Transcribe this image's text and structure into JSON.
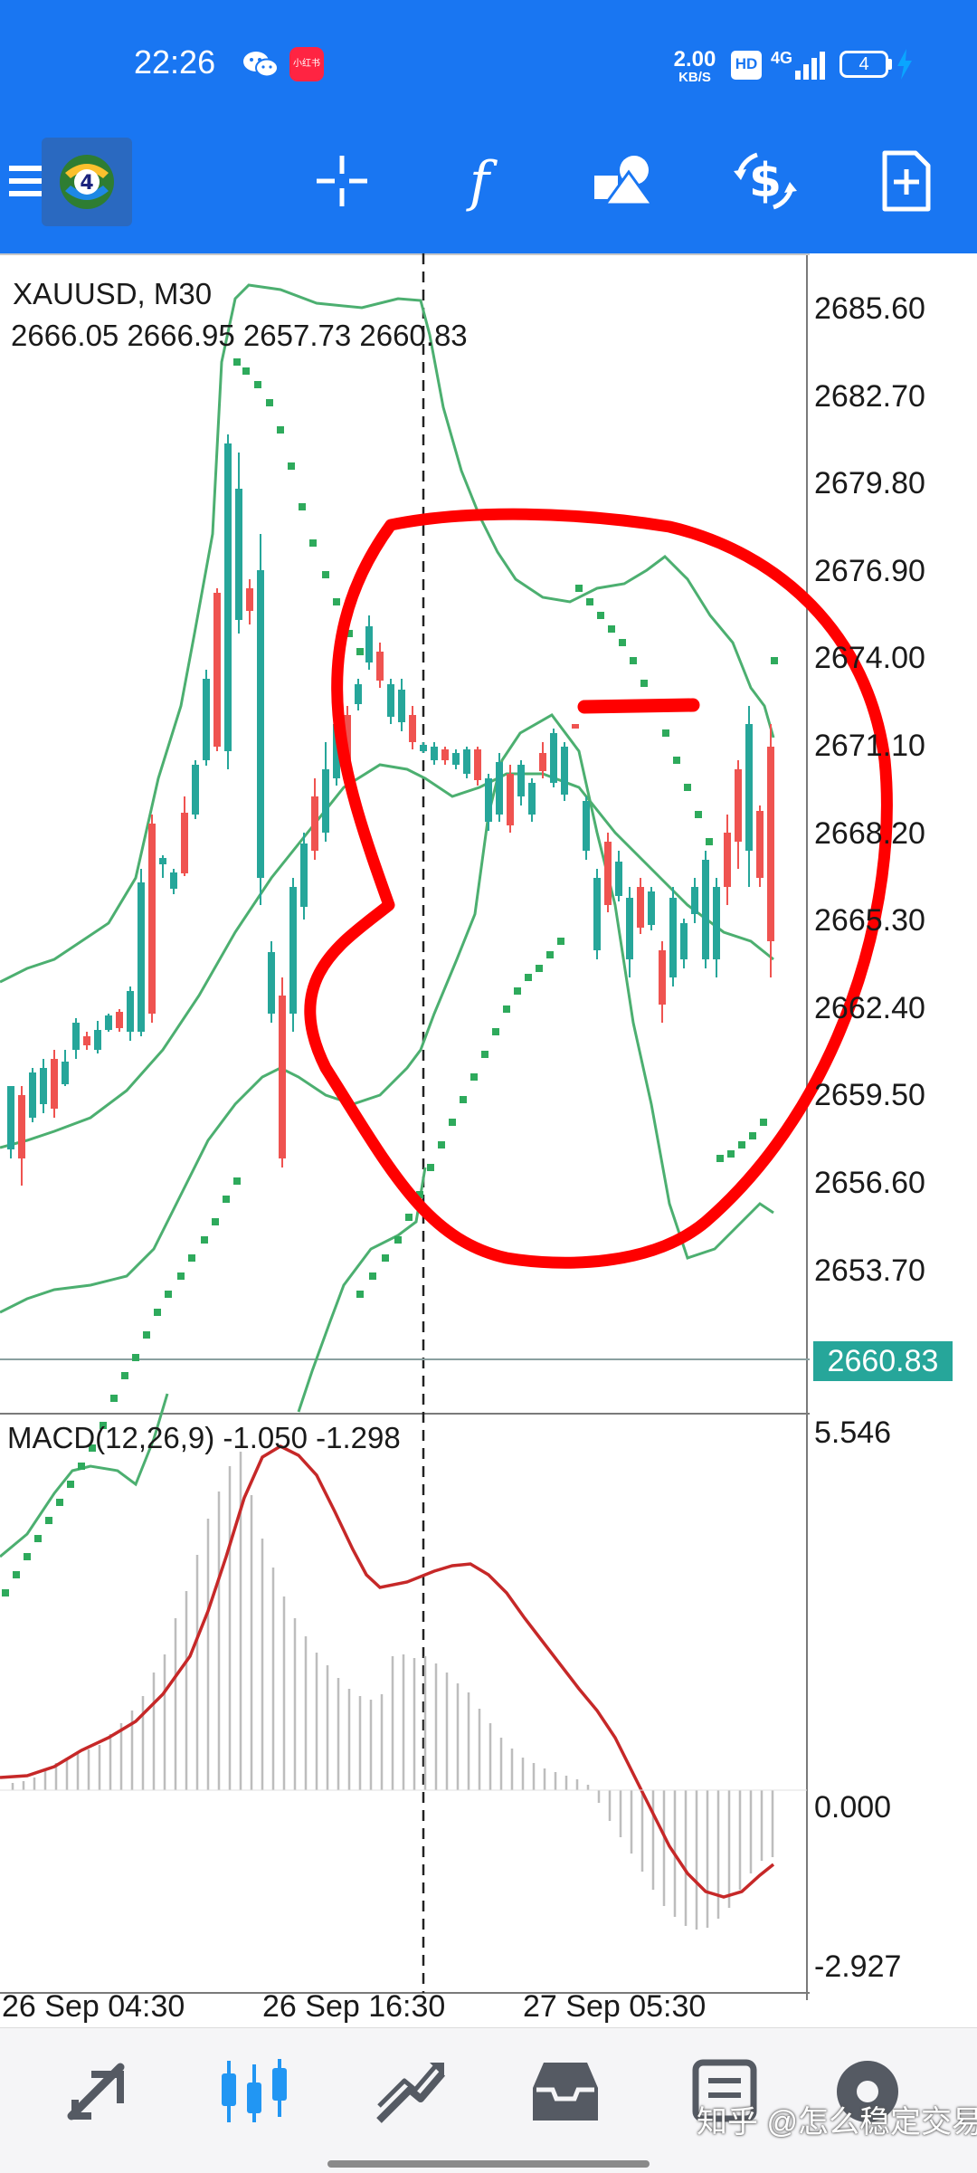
{
  "status_bar": {
    "time": "22:26",
    "app_badge": "小红书",
    "net_speed": "2.00",
    "net_unit": "KB/S",
    "hd": "HD",
    "net_type": "4G",
    "battery": "4"
  },
  "toolbar": {
    "icons": [
      "menu-icon",
      "mt4-logo-icon",
      "crosshair-icon",
      "indicators-icon",
      "objects-icon",
      "symbols-icon",
      "templates-icon"
    ]
  },
  "chart": {
    "symbol": "XAUUSD, M30",
    "ohlc": "2666.05 2666.95 2657.73 2660.83",
    "current_price": "2660.83",
    "price_ticks": [
      "2685.60",
      "2682.70",
      "2679.80",
      "2676.90",
      "2674.00",
      "2671.10",
      "2668.20",
      "2665.30",
      "2662.40",
      "2659.50",
      "2656.60",
      "2653.70"
    ],
    "macd_label": "MACD(12,26,9) -1.050 -1.298",
    "macd_ticks": [
      "5.546",
      "0.000",
      "-2.927"
    ],
    "time_ticks": [
      "26 Sep 04:30",
      "26 Sep 16:30",
      "27 Sep 05:30"
    ],
    "colors": {
      "bull": "#26a69a",
      "bear": "#ef5350",
      "bands": "#4caf70",
      "sar": "#2eaa5c",
      "macd_signal": "#c62828",
      "histogram": "#bdbdbd",
      "annotation": "#ff0000"
    }
  },
  "bottom_nav": {
    "items": [
      "quotes-icon",
      "chart-icon",
      "trade-icon",
      "history-icon",
      "messages-icon",
      "settings-icon"
    ]
  },
  "watermark": "知乎 @怎么稳定交易"
}
